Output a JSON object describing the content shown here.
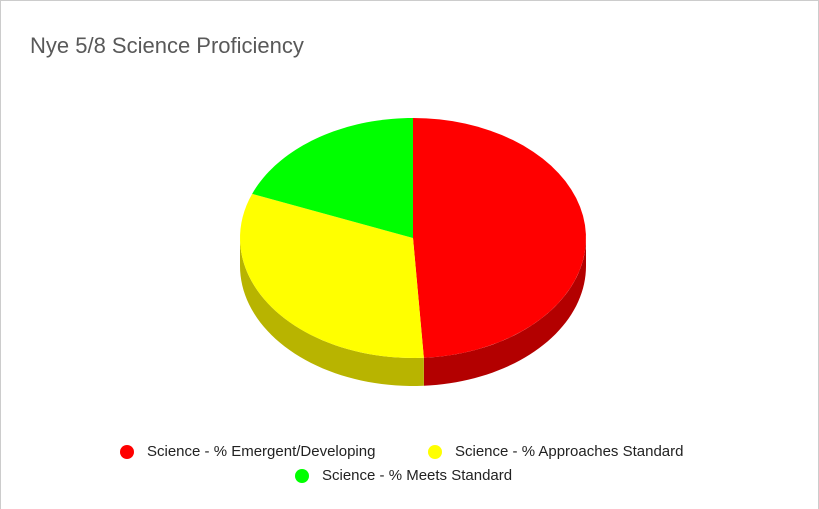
{
  "chart_data": {
    "type": "pie",
    "title": "Nye 5/8 Science Proficiency",
    "categories": [
      "Science - % Emergent/Developing",
      "Science - % Approaches Standard",
      "Science - % Meets Standard"
    ],
    "values": [
      49,
      32,
      19
    ],
    "colors": [
      "#ff0000",
      "#ffff00",
      "#00ff00"
    ],
    "side_colors": [
      "#b30000",
      "#b8b400",
      "#00b000"
    ]
  }
}
